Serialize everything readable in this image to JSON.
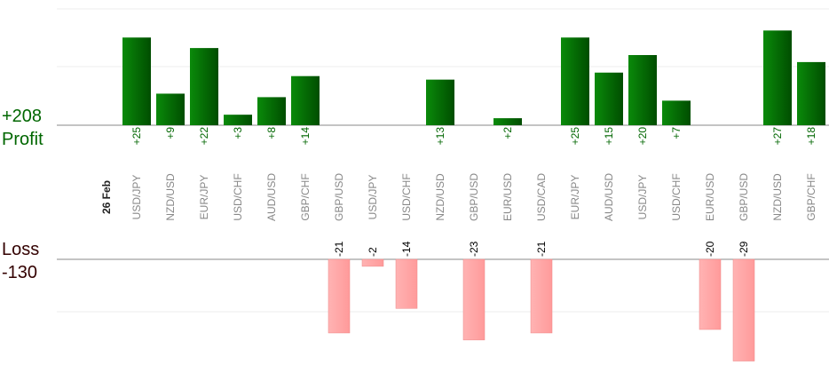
{
  "chart_data": {
    "type": "bar",
    "date_label": "26 Feb",
    "categories": [
      "USD/JPY",
      "NZD/USD",
      "EUR/JPY",
      "USD/CHF",
      "AUD/USD",
      "GBP/CHF",
      "GBP/USD",
      "USD/JPY",
      "USD/CHF",
      "NZD/USD",
      "GBP/USD",
      "EUR/USD",
      "USD/CAD",
      "EUR/JPY",
      "AUD/USD",
      "USD/JPY",
      "USD/CHF",
      "EUR/USD",
      "GBP/USD",
      "NZD/USD",
      "GBP/CHF"
    ],
    "values": [
      25,
      9,
      22,
      3,
      8,
      14,
      -21,
      -2,
      -14,
      13,
      -23,
      2,
      -21,
      25,
      15,
      20,
      7,
      -20,
      -29,
      27,
      18
    ],
    "value_labels": [
      "+25",
      "+9",
      "+22",
      "+3",
      "+8",
      "+14",
      "-21",
      "-2",
      "-14",
      "+13",
      "-23",
      "+2",
      "-21",
      "+25",
      "+15",
      "+20",
      "+7",
      "-20",
      "-29",
      "+27",
      "+18"
    ],
    "profit": {
      "label": "Profit",
      "total": "+208",
      "ylim": [
        0,
        20
      ]
    },
    "loss": {
      "label": "Loss",
      "total": "-130",
      "ylim": [
        -30,
        0
      ]
    },
    "colors": {
      "profit": "#006600",
      "loss": "#ff9999",
      "profit_text": "#006600",
      "loss_text": "#330000"
    }
  }
}
